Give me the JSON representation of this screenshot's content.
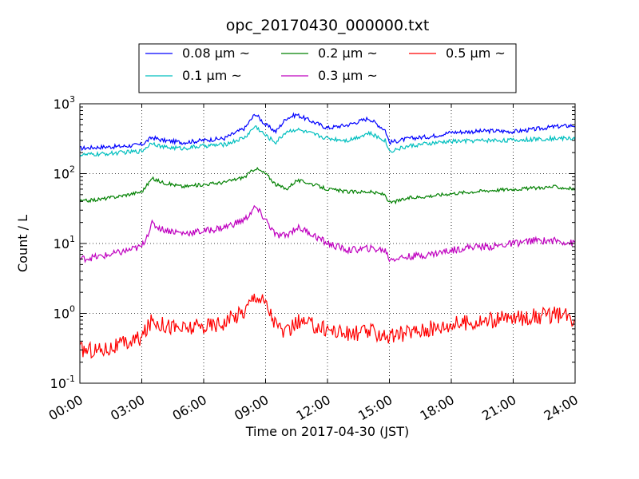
{
  "chart_data": {
    "type": "line",
    "title": "opc_20170430_000000.txt",
    "xlabel": "Time on 2017-04-30 (JST)",
    "ylabel": "Count / L",
    "yscale": "log",
    "ylim": [
      0.1,
      1000
    ],
    "xlim": [
      0,
      24
    ],
    "x_ticks": [
      "00:00",
      "03:00",
      "06:00",
      "09:00",
      "12:00",
      "15:00",
      "18:00",
      "21:00",
      "24:00"
    ],
    "y_ticks": [
      {
        "base": "10",
        "exp": "-1",
        "value": 0.1
      },
      {
        "base": "10",
        "exp": "0",
        "value": 1
      },
      {
        "base": "10",
        "exp": "1",
        "value": 10
      },
      {
        "base": "10",
        "exp": "2",
        "value": 100
      },
      {
        "base": "10",
        "exp": "3",
        "value": 1000
      }
    ],
    "grid": true,
    "legend_position": "top-center",
    "x_hours": [
      0,
      1,
      2,
      3,
      3.5,
      4,
      5,
      6,
      7,
      8,
      8.5,
      9,
      9.5,
      10,
      10.5,
      11,
      12,
      13,
      14,
      14.8,
      15,
      16,
      17,
      18,
      19,
      20,
      21,
      22,
      23,
      24
    ],
    "series": [
      {
        "name": "0.08 μm ~",
        "color": "#0000ff",
        "values": [
          230,
          240,
          245,
          260,
          330,
          300,
          280,
          300,
          320,
          450,
          720,
          500,
          400,
          620,
          700,
          600,
          450,
          500,
          620,
          420,
          280,
          320,
          340,
          390,
          400,
          410,
          400,
          430,
          470,
          490
        ]
      },
      {
        "name": "0.1 μm ~",
        "color": "#00bfbf",
        "values": [
          185,
          190,
          200,
          210,
          280,
          240,
          230,
          250,
          260,
          330,
          480,
          350,
          280,
          400,
          430,
          390,
          320,
          300,
          380,
          300,
          210,
          250,
          270,
          290,
          295,
          300,
          300,
          310,
          320,
          320
        ]
      },
      {
        "name": "0.2 μm ~",
        "color": "#008000",
        "values": [
          40,
          43,
          48,
          55,
          85,
          75,
          65,
          70,
          75,
          90,
          120,
          100,
          70,
          60,
          80,
          75,
          60,
          55,
          55,
          50,
          38,
          45,
          48,
          52,
          55,
          58,
          60,
          62,
          65,
          60
        ]
      },
      {
        "name": "0.3 μm ~",
        "color": "#bf00bf",
        "values": [
          6,
          6.5,
          7.5,
          9,
          19,
          16,
          14,
          15,
          17,
          22,
          33,
          22,
          13,
          13,
          17,
          15,
          10,
          8,
          8.5,
          8,
          6,
          6.5,
          7,
          8,
          9,
          9,
          10,
          11,
          11,
          10
        ]
      },
      {
        "name": "0.5 μm ~",
        "color": "#ff0000",
        "values": [
          0.3,
          0.3,
          0.35,
          0.45,
          0.8,
          0.7,
          0.6,
          0.65,
          0.75,
          1.1,
          1.9,
          1.4,
          0.7,
          0.5,
          0.75,
          0.7,
          0.6,
          0.5,
          0.55,
          0.5,
          0.45,
          0.55,
          0.6,
          0.7,
          0.75,
          0.8,
          0.85,
          0.9,
          0.95,
          0.85
        ]
      }
    ]
  }
}
